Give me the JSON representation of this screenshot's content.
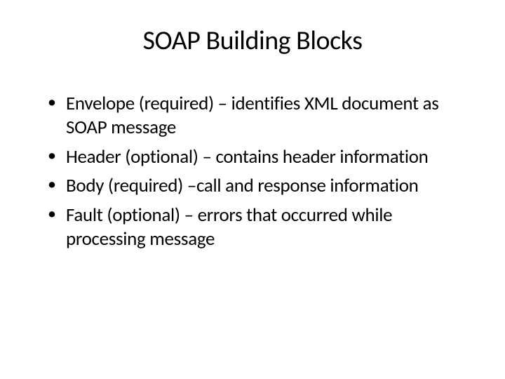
{
  "slide": {
    "title": "SOAP Building Blocks",
    "title_fontsize": 38,
    "title_color": "#000000",
    "body_fontsize": 27,
    "body_color": "#000000",
    "background_color": "#ffffff",
    "bullets": [
      "Envelope (required) – identifies XML document as SOAP message",
      "Header (optional) – contains header information",
      "Body (required) –call and response information",
      "Fault (optional) – errors that occurred while processing message"
    ]
  }
}
